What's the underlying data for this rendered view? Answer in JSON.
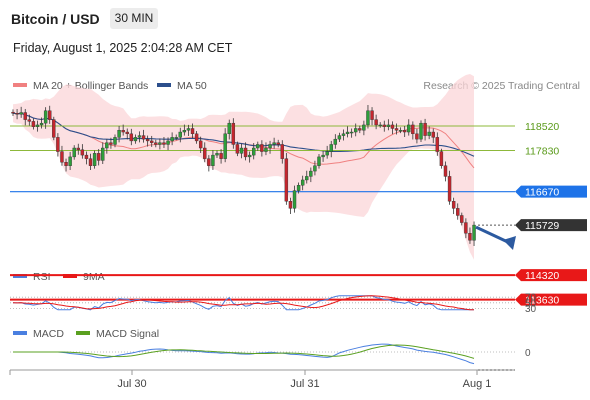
{
  "header": {
    "title": "Bitcoin / USD",
    "timeframe": "30 MIN",
    "datetime": "Friday, August 1, 2025 2:04:28 AM CET"
  },
  "legend": {
    "ma20_label": "MA 20 + Bollinger Bands",
    "ma50_label": "MA 50",
    "research": "Research © 2025 Trading Central",
    "rsi_label": "RSI",
    "rsi_ma_label": "9MA",
    "macd_label": "MACD",
    "macd_signal_label": "MACD Signal"
  },
  "colors": {
    "ma20": "#f08080",
    "ma50": "#2c4f8c",
    "bollinger_fill": "#fbd5d8",
    "resistance": "#8db83a",
    "pivot": "#1e73e8",
    "support": "#e81818",
    "price_tag": "#333333",
    "arrow": "#2c5aa0",
    "candle_up": "#2e9e3a",
    "candle_down": "#c4262e"
  },
  "chart_data": {
    "type": "candlestick",
    "x_ticks": [
      "Jul 30",
      "Jul 31",
      "Aug 1"
    ],
    "levels": [
      {
        "value": 118520,
        "label": "118520",
        "kind": "resistance"
      },
      {
        "value": 117830,
        "label": "117830",
        "kind": "resistance"
      },
      {
        "value": 116670,
        "label": "116670",
        "kind": "pivot"
      },
      {
        "value": 115729,
        "label": "115729",
        "kind": "last_price"
      },
      {
        "value": 114320,
        "label": "114320",
        "kind": "support"
      },
      {
        "value": 113630,
        "label": "113630",
        "kind": "support"
      }
    ],
    "close": [
      118880,
      118850,
      118900,
      118700,
      118650,
      118500,
      118550,
      118600,
      118950,
      118700,
      118200,
      117800,
      117500,
      117400,
      117650,
      117900,
      117850,
      117700,
      117600,
      117400,
      117750,
      117550,
      117900,
      118050,
      118000,
      118200,
      118400,
      118350,
      118300,
      118100,
      118200,
      118250,
      118150,
      118100,
      118050,
      118000,
      118050,
      118000,
      118100,
      118200,
      118200,
      118350,
      118400,
      118450,
      118300,
      118100,
      117900,
      117600,
      117400,
      117700,
      117750,
      117600,
      118300,
      118600,
      118000,
      117750,
      117900,
      117650,
      117700,
      117900,
      118000,
      117800,
      117900,
      118000,
      118050,
      118000,
      117600,
      116400,
      116200,
      116700,
      116850,
      117000,
      117100,
      117250,
      117400,
      117650,
      117700,
      117800,
      118000,
      118150,
      118250,
      118300,
      118350,
      118350,
      118450,
      118400,
      118550,
      118950,
      118700,
      118550,
      118550,
      118500,
      118550,
      118450,
      118400,
      118400,
      118350,
      118550,
      118300,
      118150,
      118600,
      118250,
      118350,
      118200,
      117800,
      117400,
      117100,
      116400,
      116200,
      116000,
      115800,
      115500,
      115300,
      115729
    ],
    "rsi_levels": [
      70,
      50,
      30
    ],
    "macd_zero": 0
  }
}
